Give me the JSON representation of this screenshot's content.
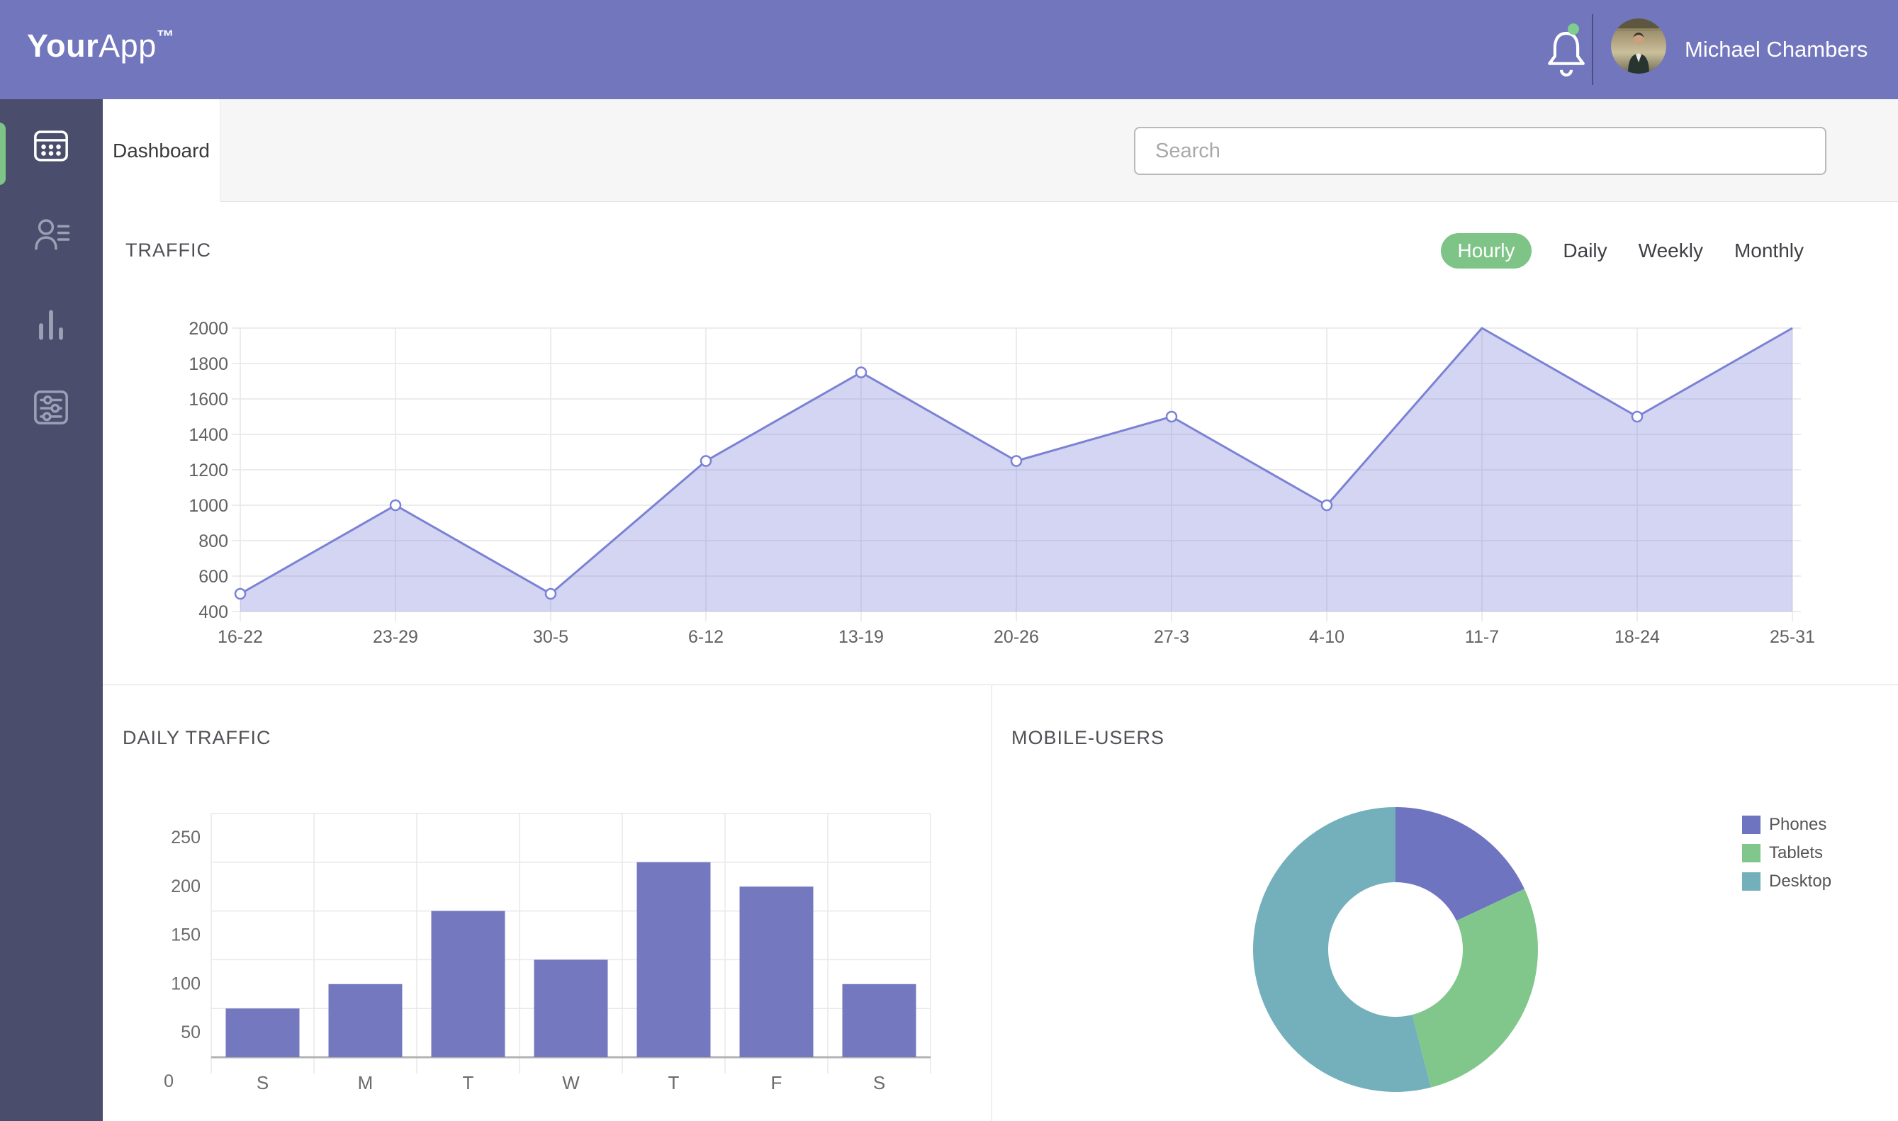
{
  "app": {
    "logo_bold": "Your",
    "logo_light": "App",
    "logo_tm": "™"
  },
  "header": {
    "user_name": "Michael Chambers",
    "has_notification_dot": true,
    "colors": {
      "bar": "#7176bd",
      "notification_dot": "#7ecf8e"
    }
  },
  "sidebar": {
    "colors": {
      "bg": "#4a4e6c",
      "active_indicator": "#7ec487",
      "icon_active": "#ffffff",
      "icon_inactive": "#9ca0b5"
    },
    "items": [
      {
        "icon": "dashboard-grid-icon",
        "active": true
      },
      {
        "icon": "user-profile-icon",
        "active": false
      },
      {
        "icon": "bar-chart-icon",
        "active": false
      },
      {
        "icon": "settings-sliders-icon",
        "active": false
      }
    ]
  },
  "tabs": {
    "active_tab": "Dashboard"
  },
  "search": {
    "placeholder": "Search"
  },
  "traffic_section": {
    "title": "TRAFFIC",
    "filters": [
      {
        "label": "Hourly",
        "active": true
      },
      {
        "label": "Daily",
        "active": false
      },
      {
        "label": "Weekly",
        "active": false
      },
      {
        "label": "Monthly",
        "active": false
      }
    ],
    "active_filter_color": "#7ec487"
  },
  "daily_traffic_section": {
    "title": "DAILY TRAFFIC"
  },
  "mobile_users_section": {
    "title": "MOBILE-USERS"
  },
  "chart_data": [
    {
      "id": "traffic",
      "type": "area",
      "title": "TRAFFIC",
      "x": [
        "16-22",
        "23-29",
        "30-5",
        "6-12",
        "13-19",
        "20-26",
        "27-3",
        "4-10",
        "11-7",
        "18-24",
        "25-31"
      ],
      "values": [
        500,
        1000,
        500,
        1250,
        1750,
        1250,
        1500,
        1000,
        2000,
        1500,
        2000
      ],
      "ylim": [
        400,
        2000
      ],
      "ytick_step": 200,
      "grid": true,
      "marker_indices": [
        0,
        1,
        2,
        3,
        4,
        5,
        6,
        7,
        9
      ],
      "line_color": "#7b82d4",
      "fill_color": "rgba(126,133,216,0.34)",
      "tick_color": "#616161"
    },
    {
      "id": "daily_traffic",
      "type": "bar",
      "title": "DAILY TRAFFIC",
      "categories": [
        "S",
        "M",
        "T",
        "W",
        "T",
        "F",
        "S"
      ],
      "values": [
        50,
        75,
        150,
        100,
        200,
        175,
        75
      ],
      "ylim": [
        0,
        250
      ],
      "ytick_step": 50,
      "grid": true,
      "bar_color": "#7478bf",
      "tick_color": "#6b6b6b"
    },
    {
      "id": "mobile_users",
      "type": "pie",
      "title": "MOBILE-USERS",
      "donut": true,
      "legend_position": "right",
      "segments": [
        {
          "label": "Phones",
          "percent": 18,
          "color": "#6f74c1"
        },
        {
          "label": "Tablets",
          "percent": 28,
          "color": "#81c78b"
        },
        {
          "label": "Desktop",
          "percent": 54,
          "color": "#73b0bb"
        }
      ]
    }
  ]
}
